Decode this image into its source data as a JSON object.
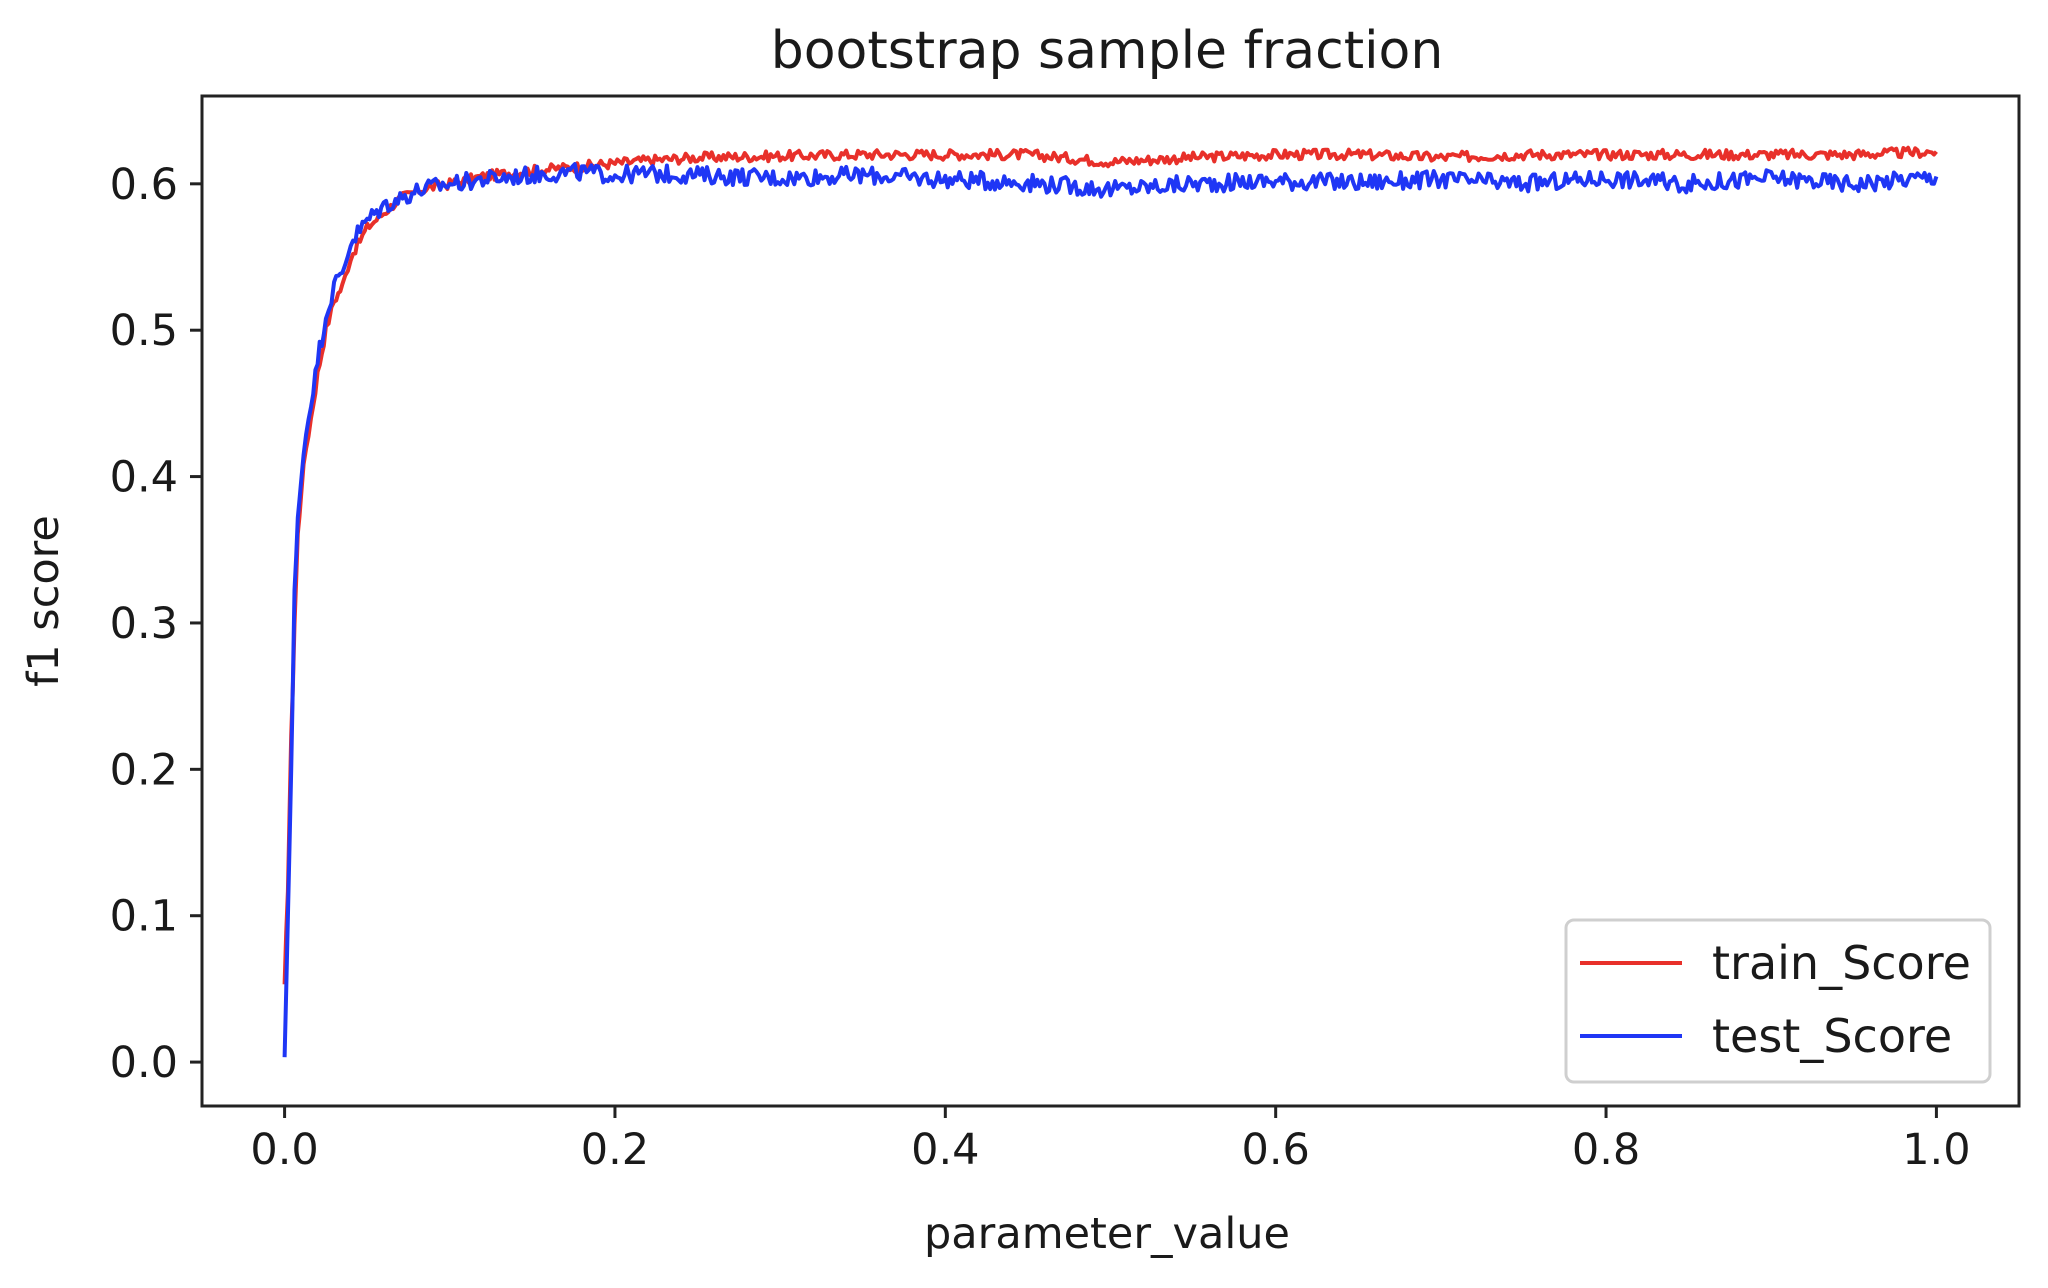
{
  "chart_data": {
    "type": "line",
    "title": "bootstrap sample fraction",
    "xlabel": "parameter_value",
    "ylabel": "f1 score",
    "xlim": [
      -0.05,
      1.05
    ],
    "ylim": [
      -0.03,
      0.66
    ],
    "x_ticks": [
      0.0,
      0.2,
      0.4,
      0.6,
      0.8,
      1.0
    ],
    "x_tick_labels": [
      "0.0",
      "0.2",
      "0.4",
      "0.6",
      "0.8",
      "1.0"
    ],
    "y_ticks": [
      0.0,
      0.1,
      0.2,
      0.3,
      0.4,
      0.5,
      0.6
    ],
    "y_tick_labels": [
      "0.0",
      "0.1",
      "0.2",
      "0.3",
      "0.4",
      "0.5",
      "0.6"
    ],
    "grid": false,
    "legend_position": "lower-right",
    "series": [
      {
        "name": "train_Score",
        "color": "#e8302a",
        "x": [
          0.0,
          0.002,
          0.004,
          0.006,
          0.008,
          0.01,
          0.013,
          0.016,
          0.02,
          0.025,
          0.03,
          0.035,
          0.04,
          0.05,
          0.06,
          0.07,
          0.08,
          0.09,
          0.1,
          0.12,
          0.14,
          0.16,
          0.18,
          0.2,
          0.22,
          0.25,
          0.3,
          0.35,
          0.4,
          0.45,
          0.5,
          0.55,
          0.6,
          0.65,
          0.7,
          0.75,
          0.8,
          0.85,
          0.9,
          0.95,
          1.0
        ],
        "values": [
          0.05,
          0.12,
          0.22,
          0.3,
          0.36,
          0.39,
          0.42,
          0.44,
          0.47,
          0.5,
          0.52,
          0.53,
          0.55,
          0.57,
          0.58,
          0.59,
          0.595,
          0.598,
          0.6,
          0.605,
          0.608,
          0.61,
          0.612,
          0.614,
          0.616,
          0.618,
          0.619,
          0.62,
          0.62,
          0.62,
          0.615,
          0.618,
          0.62,
          0.62,
          0.618,
          0.62,
          0.62,
          0.62,
          0.62,
          0.62,
          0.622
        ]
      },
      {
        "name": "test_Score",
        "color": "#1f36f5",
        "x": [
          0.0,
          0.002,
          0.004,
          0.006,
          0.008,
          0.01,
          0.013,
          0.016,
          0.02,
          0.025,
          0.03,
          0.035,
          0.04,
          0.05,
          0.06,
          0.07,
          0.08,
          0.09,
          0.1,
          0.12,
          0.14,
          0.16,
          0.18,
          0.2,
          0.22,
          0.25,
          0.3,
          0.35,
          0.4,
          0.45,
          0.5,
          0.55,
          0.6,
          0.65,
          0.7,
          0.75,
          0.8,
          0.85,
          0.9,
          0.95,
          1.0
        ],
        "values": [
          0.0,
          0.1,
          0.2,
          0.32,
          0.37,
          0.4,
          0.43,
          0.45,
          0.48,
          0.51,
          0.53,
          0.54,
          0.56,
          0.575,
          0.585,
          0.59,
          0.595,
          0.598,
          0.6,
          0.603,
          0.605,
          0.607,
          0.608,
          0.606,
          0.607,
          0.606,
          0.604,
          0.606,
          0.603,
          0.601,
          0.596,
          0.6,
          0.602,
          0.601,
          0.603,
          0.6,
          0.604,
          0.6,
          0.604,
          0.6,
          0.605
        ]
      }
    ]
  }
}
